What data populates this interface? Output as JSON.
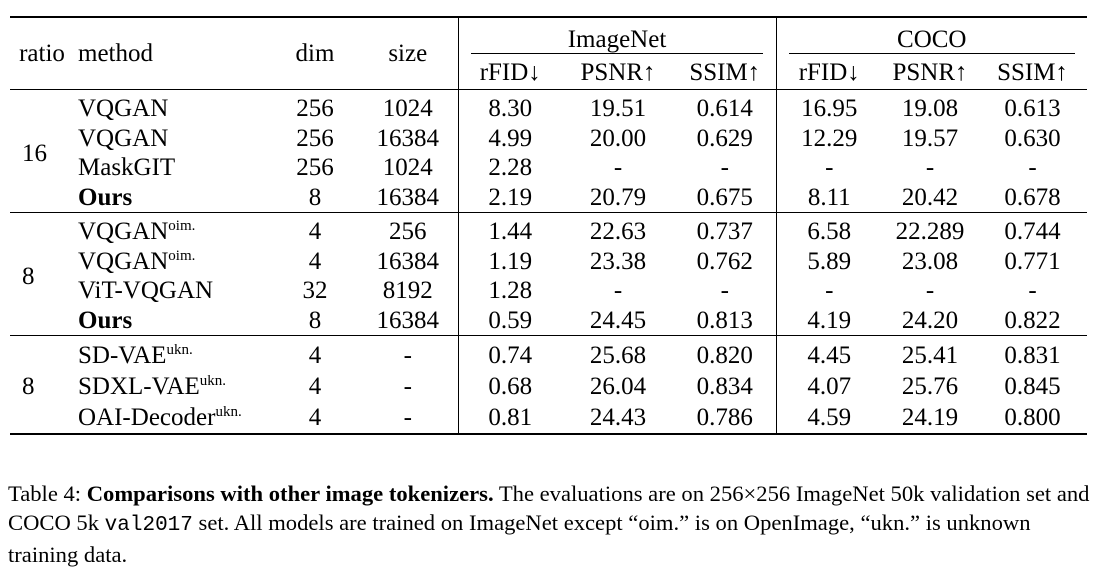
{
  "table": {
    "col_headers": {
      "ratio": "ratio",
      "method": "method",
      "dim": "dim",
      "size": "size",
      "imagenet": "ImageNet",
      "coco": "COCO",
      "rfid": "rFID↓",
      "psnr": "PSNR↑",
      "ssim": "SSIM↑"
    },
    "groups": [
      {
        "ratio": "16",
        "rows": [
          {
            "method": "VQGAN",
            "sup": "",
            "bold": false,
            "dim": "256",
            "size": "1024",
            "in_rfid": "8.30",
            "in_psnr": "19.51",
            "in_ssim": "0.614",
            "co_rfid": "16.95",
            "co_psnr": "19.08",
            "co_ssim": "0.613"
          },
          {
            "method": "VQGAN",
            "sup": "",
            "bold": false,
            "dim": "256",
            "size": "16384",
            "in_rfid": "4.99",
            "in_psnr": "20.00",
            "in_ssim": "0.629",
            "co_rfid": "12.29",
            "co_psnr": "19.57",
            "co_ssim": "0.630"
          },
          {
            "method": "MaskGIT",
            "sup": "",
            "bold": false,
            "dim": "256",
            "size": "1024",
            "in_rfid": "2.28",
            "in_psnr": "-",
            "in_ssim": "-",
            "co_rfid": "-",
            "co_psnr": "-",
            "co_ssim": "-"
          },
          {
            "method": "Ours",
            "sup": "",
            "bold": true,
            "dim": "8",
            "size": "16384",
            "in_rfid": "2.19",
            "in_psnr": "20.79",
            "in_ssim": "0.675",
            "co_rfid": "8.11",
            "co_psnr": "20.42",
            "co_ssim": "0.678"
          }
        ]
      },
      {
        "ratio": "8",
        "rows": [
          {
            "method": "VQGAN",
            "sup": "oim.",
            "bold": false,
            "dim": "4",
            "size": "256",
            "in_rfid": "1.44",
            "in_psnr": "22.63",
            "in_ssim": "0.737",
            "co_rfid": "6.58",
            "co_psnr": "22.289",
            "co_ssim": "0.744"
          },
          {
            "method": "VQGAN",
            "sup": "oim.",
            "bold": false,
            "dim": "4",
            "size": "16384",
            "in_rfid": "1.19",
            "in_psnr": "23.38",
            "in_ssim": "0.762",
            "co_rfid": "5.89",
            "co_psnr": "23.08",
            "co_ssim": "0.771"
          },
          {
            "method": "ViT-VQGAN",
            "sup": "",
            "bold": false,
            "dim": "32",
            "size": "8192",
            "in_rfid": "1.28",
            "in_psnr": "-",
            "in_ssim": "-",
            "co_rfid": "-",
            "co_psnr": "-",
            "co_ssim": "-"
          },
          {
            "method": "Ours",
            "sup": "",
            "bold": true,
            "dim": "8",
            "size": "16384",
            "in_rfid": "0.59",
            "in_psnr": "24.45",
            "in_ssim": "0.813",
            "co_rfid": "4.19",
            "co_psnr": "24.20",
            "co_ssim": "0.822"
          }
        ]
      },
      {
        "ratio": "8",
        "rows": [
          {
            "method": "SD-VAE",
            "sup": "ukn.",
            "bold": false,
            "dim": "4",
            "size": "-",
            "in_rfid": "0.74",
            "in_psnr": "25.68",
            "in_ssim": "0.820",
            "co_rfid": "4.45",
            "co_psnr": "25.41",
            "co_ssim": "0.831"
          },
          {
            "method": "SDXL-VAE",
            "sup": "ukn.",
            "bold": false,
            "dim": "4",
            "size": "-",
            "in_rfid": "0.68",
            "in_psnr": "26.04",
            "in_ssim": "0.834",
            "co_rfid": "4.07",
            "co_psnr": "25.76",
            "co_ssim": "0.845"
          },
          {
            "method": "OAI-Decoder",
            "sup": "ukn.",
            "bold": false,
            "dim": "4",
            "size": "-",
            "in_rfid": "0.81",
            "in_psnr": "24.43",
            "in_ssim": "0.786",
            "co_rfid": "4.59",
            "co_psnr": "24.19",
            "co_ssim": "0.800"
          }
        ]
      }
    ]
  },
  "caption": {
    "label": "Table 4:",
    "title": "Comparisons with other image tokenizers.",
    "text_1": "The evaluations are on 256×256 ImageNet 50k validation set and COCO 5k",
    "code": "val2017",
    "text_2": "set. All models are trained on ImageNet except “oim.” is on OpenImage, “ukn.” is unknown training data."
  }
}
